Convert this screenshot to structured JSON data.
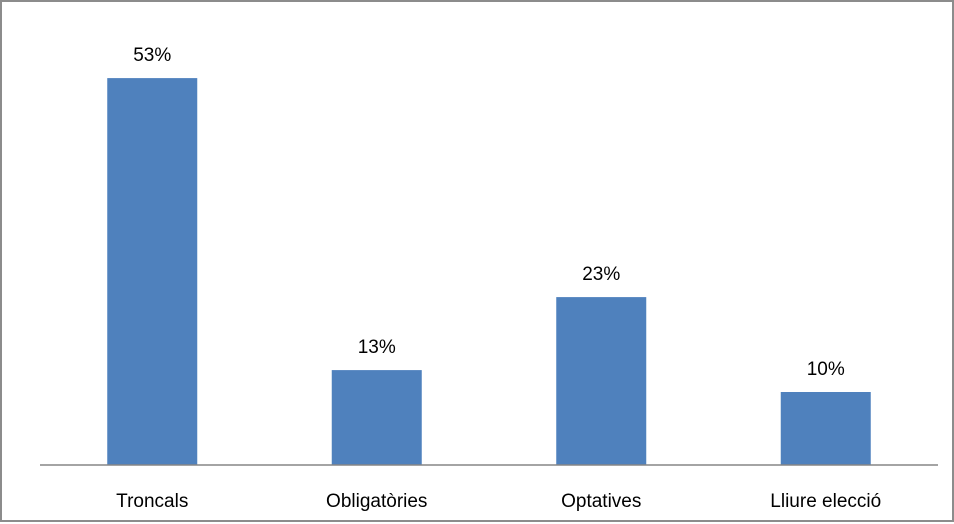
{
  "chart_data": {
    "type": "bar",
    "categories": [
      "Troncals",
      "Obligatòries",
      "Optatives",
      "Lliure elecció"
    ],
    "values": [
      53,
      13,
      23,
      10
    ],
    "data_labels": [
      "53%",
      "13%",
      "23%",
      "10%"
    ],
    "unit": "%",
    "ylim": [
      0,
      60
    ],
    "grid": false,
    "legend": "none",
    "bar_color": "#4f81bd",
    "axis_color": "#868686"
  }
}
